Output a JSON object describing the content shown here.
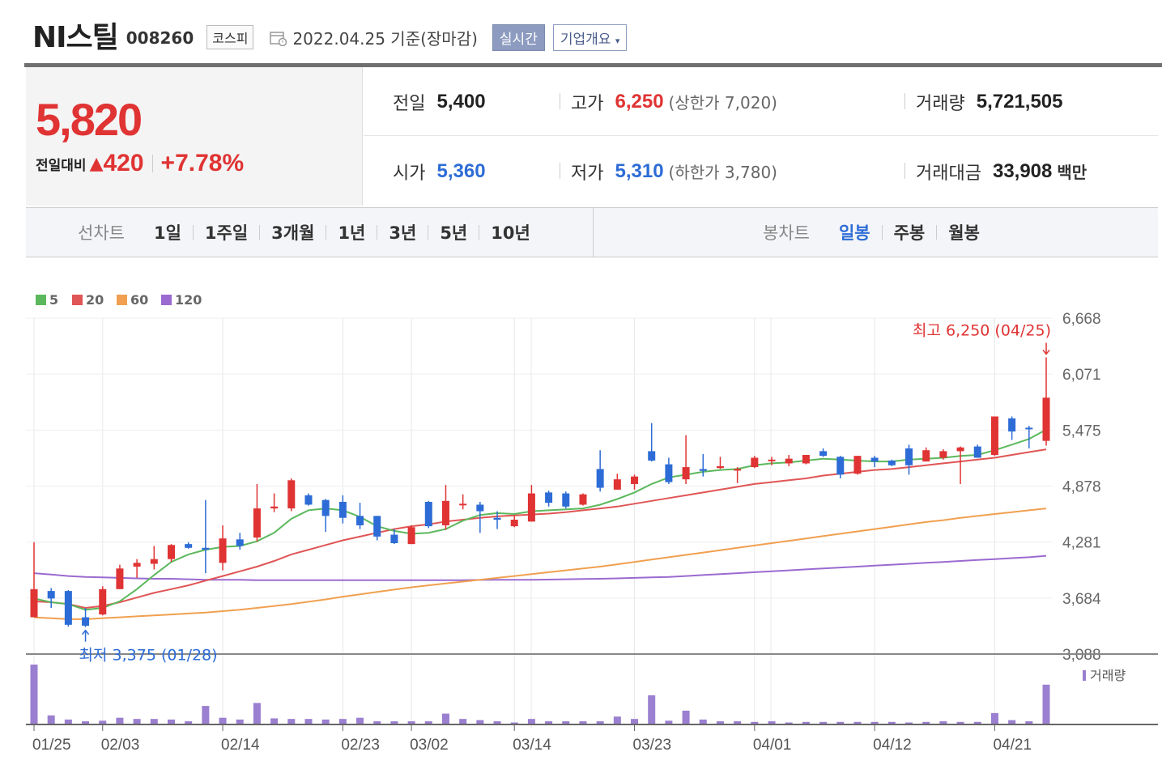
{
  "header": {
    "name": "NI스틸",
    "code": "008260",
    "market": "코스피",
    "date": "2022.04.25 기준(장마감)",
    "realtime_label": "실시간",
    "company_label": "기업개요"
  },
  "price": {
    "current": "5,820",
    "change_label": "전일대비",
    "change_value": "420",
    "change_pct": "+7.78%"
  },
  "stats": {
    "prev_label": "전일",
    "prev_value": "5,400",
    "high_label": "고가",
    "high_value": "6,250",
    "high_sub": "(상한가 7,020)",
    "volume_label": "거래량",
    "volume_value": "5,721,505",
    "open_label": "시가",
    "open_value": "5,360",
    "low_label": "저가",
    "low_value": "5,310",
    "low_sub": "(하한가 3,780)",
    "amount_label": "거래대금",
    "amount_value": "33,908",
    "amount_unit": "백만"
  },
  "periods": {
    "line_label": "선차트",
    "line_items": [
      "1일",
      "1주일",
      "3개월",
      "1년",
      "3년",
      "5년",
      "10년"
    ],
    "candle_label": "봉차트",
    "candle_items": [
      "일봉",
      "주봉",
      "월봉"
    ],
    "candle_active": "일봉"
  },
  "colors": {
    "up": "#e03333",
    "down": "#2d6cd6",
    "ma5": "#5cb85c",
    "ma20": "#e05555",
    "ma60": "#f0a050",
    "ma120": "#9b6ad0",
    "volume": "#9b7fd0"
  },
  "chart_data": {
    "type": "candlestick",
    "legend": [
      "5",
      "20",
      "60",
      "120"
    ],
    "y_ticks": [
      "6,668",
      "6,071",
      "5,475",
      "4,878",
      "4,281",
      "3,684",
      "3,088"
    ],
    "ylim": [
      3088,
      6668
    ],
    "x_ticks": [
      "01/25",
      "02/03",
      "02/14",
      "02/23",
      "03/02",
      "03/14",
      "03/23",
      "04/01",
      "04/12",
      "04/21"
    ],
    "x_tick_index": [
      0,
      4,
      11,
      18,
      22,
      28,
      35,
      42,
      49,
      56
    ],
    "max_annotation": "최고 6,250 (04/25)",
    "min_annotation": "최저 3,375 (01/28)",
    "volume_label": "거래량",
    "candles": [
      {
        "o": 3480,
        "h": 4280,
        "l": 3480,
        "c": 3780
      },
      {
        "o": 3760,
        "h": 3790,
        "l": 3580,
        "c": 3680
      },
      {
        "o": 3760,
        "h": 3770,
        "l": 3380,
        "c": 3400
      },
      {
        "o": 3480,
        "h": 3580,
        "l": 3375,
        "c": 3390
      },
      {
        "o": 3510,
        "h": 3810,
        "l": 3500,
        "c": 3780
      },
      {
        "o": 3780,
        "h": 4040,
        "l": 3780,
        "c": 4000
      },
      {
        "o": 4020,
        "h": 4100,
        "l": 3900,
        "c": 4060
      },
      {
        "o": 4050,
        "h": 4240,
        "l": 3990,
        "c": 4100
      },
      {
        "o": 4100,
        "h": 4260,
        "l": 4070,
        "c": 4250
      },
      {
        "o": 4260,
        "h": 4280,
        "l": 4210,
        "c": 4220
      },
      {
        "o": 4220,
        "h": 4730,
        "l": 3950,
        "c": 4200
      },
      {
        "o": 4060,
        "h": 4460,
        "l": 3980,
        "c": 4320
      },
      {
        "o": 4310,
        "h": 4380,
        "l": 4200,
        "c": 4240
      },
      {
        "o": 4330,
        "h": 4900,
        "l": 4290,
        "c": 4640
      },
      {
        "o": 4640,
        "h": 4800,
        "l": 4600,
        "c": 4660
      },
      {
        "o": 4640,
        "h": 4960,
        "l": 4610,
        "c": 4940
      },
      {
        "o": 4780,
        "h": 4800,
        "l": 4670,
        "c": 4680
      },
      {
        "o": 4730,
        "h": 4740,
        "l": 4390,
        "c": 4560
      },
      {
        "o": 4710,
        "h": 4780,
        "l": 4480,
        "c": 4540
      },
      {
        "o": 4560,
        "h": 4700,
        "l": 4420,
        "c": 4460
      },
      {
        "o": 4560,
        "h": 4560,
        "l": 4300,
        "c": 4340
      },
      {
        "o": 4360,
        "h": 4420,
        "l": 4260,
        "c": 4270
      },
      {
        "o": 4260,
        "h": 4460,
        "l": 4260,
        "c": 4440
      },
      {
        "o": 4710,
        "h": 4720,
        "l": 4430,
        "c": 4450
      },
      {
        "o": 4460,
        "h": 4890,
        "l": 4410,
        "c": 4720
      },
      {
        "o": 4690,
        "h": 4790,
        "l": 4630,
        "c": 4690
      },
      {
        "o": 4680,
        "h": 4710,
        "l": 4380,
        "c": 4610
      },
      {
        "o": 4540,
        "h": 4610,
        "l": 4420,
        "c": 4520
      },
      {
        "o": 4450,
        "h": 4560,
        "l": 4440,
        "c": 4520
      },
      {
        "o": 4500,
        "h": 4890,
        "l": 4500,
        "c": 4800
      },
      {
        "o": 4810,
        "h": 4830,
        "l": 4660,
        "c": 4700
      },
      {
        "o": 4800,
        "h": 4820,
        "l": 4640,
        "c": 4660
      },
      {
        "o": 4680,
        "h": 4800,
        "l": 4670,
        "c": 4790
      },
      {
        "o": 5060,
        "h": 5260,
        "l": 4820,
        "c": 4860
      },
      {
        "o": 4840,
        "h": 5010,
        "l": 4840,
        "c": 4950
      },
      {
        "o": 4900,
        "h": 5000,
        "l": 4840,
        "c": 4980
      },
      {
        "o": 5250,
        "h": 5550,
        "l": 5140,
        "c": 5150
      },
      {
        "o": 5110,
        "h": 5180,
        "l": 4900,
        "c": 4920
      },
      {
        "o": 4950,
        "h": 5420,
        "l": 4900,
        "c": 5080
      },
      {
        "o": 5060,
        "h": 5220,
        "l": 4980,
        "c": 5040
      },
      {
        "o": 5070,
        "h": 5190,
        "l": 5060,
        "c": 5090
      },
      {
        "o": 5060,
        "h": 5080,
        "l": 4910,
        "c": 5060
      },
      {
        "o": 5080,
        "h": 5200,
        "l": 5070,
        "c": 5180
      },
      {
        "o": 5160,
        "h": 5190,
        "l": 5100,
        "c": 5160
      },
      {
        "o": 5120,
        "h": 5210,
        "l": 5090,
        "c": 5170
      },
      {
        "o": 5120,
        "h": 5210,
        "l": 5110,
        "c": 5210
      },
      {
        "o": 5250,
        "h": 5280,
        "l": 5190,
        "c": 5200
      },
      {
        "o": 5190,
        "h": 5200,
        "l": 4960,
        "c": 5000
      },
      {
        "o": 5010,
        "h": 5200,
        "l": 5000,
        "c": 5200
      },
      {
        "o": 5180,
        "h": 5200,
        "l": 5080,
        "c": 5140
      },
      {
        "o": 5150,
        "h": 5160,
        "l": 5090,
        "c": 5100
      },
      {
        "o": 5280,
        "h": 5320,
        "l": 5000,
        "c": 5100
      },
      {
        "o": 5140,
        "h": 5290,
        "l": 5140,
        "c": 5260
      },
      {
        "o": 5180,
        "h": 5270,
        "l": 5160,
        "c": 5250
      },
      {
        "o": 5250,
        "h": 5300,
        "l": 4900,
        "c": 5290
      },
      {
        "o": 5300,
        "h": 5320,
        "l": 5180,
        "c": 5180
      },
      {
        "o": 5210,
        "h": 5620,
        "l": 5200,
        "c": 5620
      },
      {
        "o": 5600,
        "h": 5620,
        "l": 5370,
        "c": 5460
      },
      {
        "o": 5500,
        "h": 5520,
        "l": 5280,
        "c": 5490
      },
      {
        "o": 5360,
        "h": 6250,
        "l": 5310,
        "c": 5820
      }
    ],
    "ma5": [
      3680,
      3640,
      3620,
      3560,
      3580,
      3650,
      3780,
      3930,
      4070,
      4150,
      4200,
      4230,
      4240,
      4290,
      4380,
      4530,
      4620,
      4640,
      4620,
      4550,
      4450,
      4400,
      4370,
      4380,
      4420,
      4510,
      4570,
      4590,
      4580,
      4610,
      4620,
      4630,
      4640,
      4680,
      4740,
      4810,
      4900,
      4970,
      5000,
      5030,
      5050,
      5060,
      5100,
      5120,
      5130,
      5150,
      5170,
      5160,
      5150,
      5140,
      5140,
      5160,
      5170,
      5180,
      5200,
      5210,
      5260,
      5320,
      5380,
      5480
    ],
    "ma20": [
      3650,
      3640,
      3620,
      3580,
      3600,
      3640,
      3690,
      3740,
      3780,
      3820,
      3870,
      3920,
      3970,
      4020,
      4080,
      4150,
      4200,
      4250,
      4300,
      4340,
      4380,
      4420,
      4450,
      4470,
      4500,
      4520,
      4540,
      4555,
      4565,
      4575,
      4585,
      4600,
      4620,
      4640,
      4660,
      4690,
      4720,
      4750,
      4780,
      4810,
      4840,
      4870,
      4900,
      4920,
      4940,
      4960,
      4990,
      5010,
      5030,
      5050,
      5060,
      5080,
      5100,
      5120,
      5140,
      5160,
      5180,
      5210,
      5240,
      5270
    ],
    "ma60": [
      3480,
      3470,
      3460,
      3460,
      3470,
      3480,
      3490,
      3500,
      3510,
      3520,
      3530,
      3545,
      3560,
      3580,
      3600,
      3620,
      3645,
      3670,
      3700,
      3725,
      3750,
      3775,
      3800,
      3820,
      3840,
      3860,
      3880,
      3900,
      3920,
      3940,
      3960,
      3980,
      4000,
      4020,
      4045,
      4070,
      4095,
      4120,
      4145,
      4170,
      4195,
      4220,
      4245,
      4270,
      4295,
      4320,
      4345,
      4370,
      4395,
      4420,
      4445,
      4470,
      4495,
      4515,
      4540,
      4560,
      4580,
      4600,
      4620,
      4640
    ],
    "ma120": [
      3950,
      3935,
      3920,
      3910,
      3905,
      3900,
      3895,
      3890,
      3890,
      3885,
      3880,
      3880,
      3880,
      3875,
      3875,
      3875,
      3875,
      3875,
      3875,
      3875,
      3875,
      3875,
      3875,
      3875,
      3875,
      3875,
      3878,
      3880,
      3880,
      3880,
      3882,
      3885,
      3888,
      3890,
      3895,
      3900,
      3905,
      3910,
      3920,
      3930,
      3940,
      3950,
      3960,
      3970,
      3980,
      3990,
      4000,
      4010,
      4020,
      4030,
      4040,
      4050,
      4060,
      4070,
      4080,
      4090,
      4100,
      4110,
      4120,
      4135
    ],
    "volume": [
      100,
      14,
      7,
      4,
      5,
      10,
      8,
      8,
      7,
      4,
      30,
      10,
      7,
      35,
      9,
      8,
      8,
      7,
      8,
      10,
      4,
      4,
      4,
      4,
      17,
      8,
      6,
      4,
      2,
      8,
      4,
      4,
      4,
      4,
      12,
      8,
      48,
      5,
      22,
      7,
      4,
      4,
      3,
      4,
      2,
      3,
      3,
      3,
      3,
      3,
      3,
      2,
      3,
      4,
      3,
      3,
      18,
      6,
      4,
      66
    ]
  }
}
